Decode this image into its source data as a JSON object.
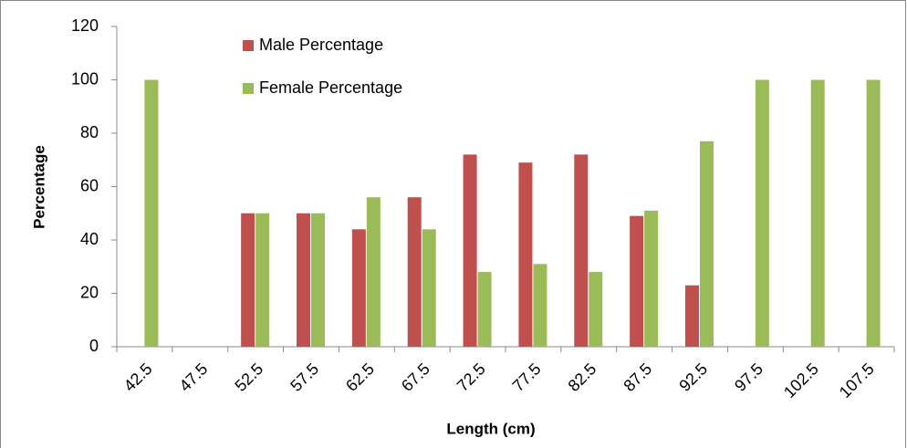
{
  "chart_data": {
    "type": "bar",
    "categories": [
      "42.5",
      "47.5",
      "52.5",
      "57.5",
      "62.5",
      "67.5",
      "72.5",
      "77.5",
      "82.5",
      "87.5",
      "92.5",
      "97.5",
      "102.5",
      "107.5"
    ],
    "series": [
      {
        "name": "Male Percentage",
        "color": "#c0504d",
        "values": [
          0,
          0,
          50,
          50,
          44,
          56,
          72,
          69,
          72,
          49,
          23,
          0,
          0,
          0
        ]
      },
      {
        "name": "Female Percentage",
        "color": "#9bbb59",
        "values": [
          100,
          0,
          50,
          50,
          56,
          44,
          28,
          31,
          28,
          51,
          77,
          100,
          100,
          100
        ]
      }
    ],
    "x_label": "Length (cm)",
    "y_label": "Percentage",
    "ylim": [
      0,
      120
    ],
    "yticks": [
      0,
      20,
      40,
      60,
      80,
      100,
      120
    ],
    "grid": false
  }
}
